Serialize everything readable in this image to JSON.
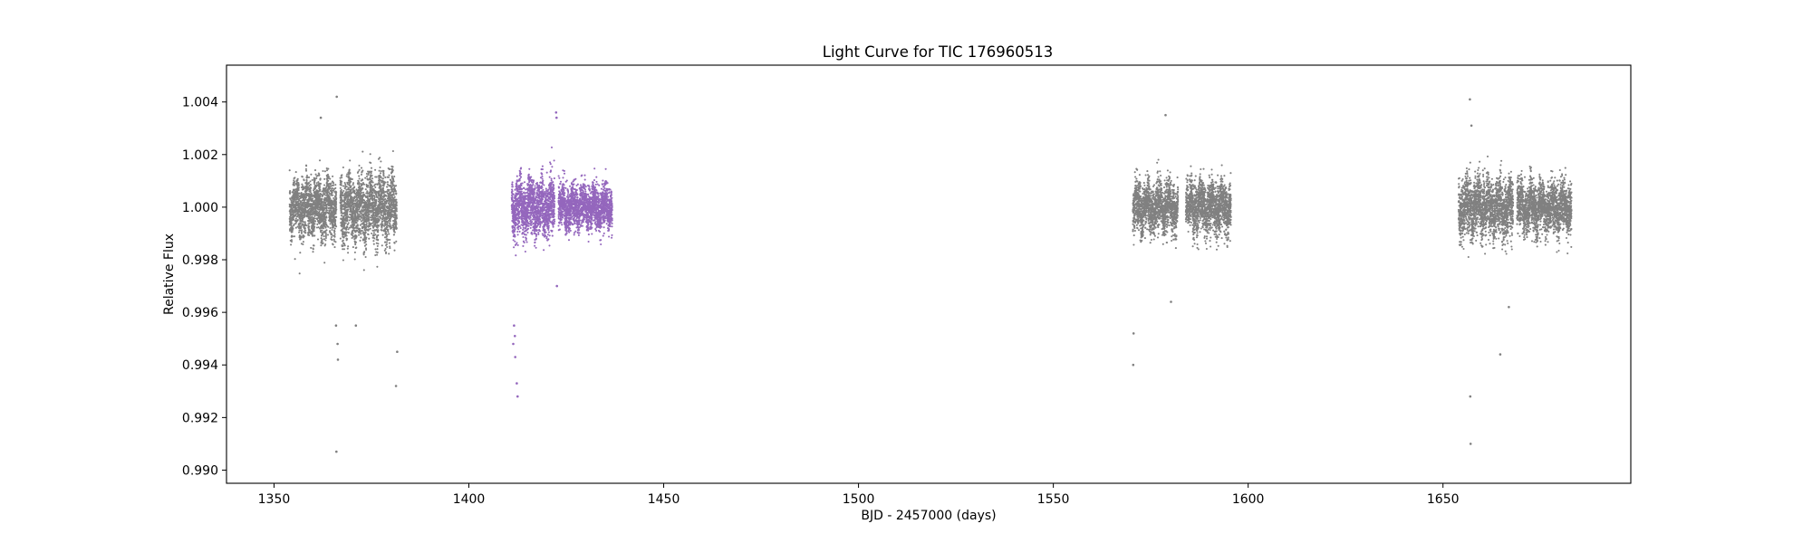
{
  "chart_data": {
    "type": "scatter",
    "title": "Light Curve for TIC 176960513",
    "xlabel": "BJD - 2457000 (days)",
    "ylabel": "Relative Flux",
    "xlim": [
      1337.8,
      1698.2
    ],
    "ylim": [
      0.9895,
      1.0054
    ],
    "xticks": [
      1350,
      1400,
      1450,
      1500,
      1550,
      1600,
      1650
    ],
    "xtick_labels": [
      "1350",
      "1400",
      "1450",
      "1500",
      "1550",
      "1600",
      "1650"
    ],
    "yticks": [
      0.99,
      0.992,
      0.994,
      0.996,
      0.998,
      1.0,
      1.002,
      1.004
    ],
    "ytick_labels": [
      "0.990",
      "0.992",
      "0.994",
      "0.996",
      "0.998",
      "1.000",
      "1.002",
      "1.004"
    ],
    "grid": false,
    "series": [
      {
        "color": "#808080",
        "segments": [
          {
            "x_range": [
              1354.0,
              1366.0
            ],
            "median": 1.0,
            "scatter": 0.0007
          },
          {
            "x_range": [
              1367.0,
              1381.5
            ],
            "median": 1.0,
            "scatter": 0.0008
          },
          {
            "x_range": [
              1570.4,
              1582.0
            ],
            "median": 1.0,
            "scatter": 0.0006
          },
          {
            "x_range": [
              1584.0,
              1595.6
            ],
            "median": 1.0,
            "scatter": 0.0006
          },
          {
            "x_range": [
              1654.0,
              1668.0
            ],
            "median": 1.0,
            "scatter": 0.0007
          },
          {
            "x_range": [
              1669.0,
              1683.0
            ],
            "median": 1.0,
            "scatter": 0.0006
          }
        ],
        "outliers": [
          {
            "x": 1366.1,
            "y": 1.0042
          },
          {
            "x": 1366.0,
            "y": 0.9907
          },
          {
            "x": 1366.3,
            "y": 0.9948
          },
          {
            "x": 1366.4,
            "y": 0.9942
          },
          {
            "x": 1365.9,
            "y": 0.9955
          },
          {
            "x": 1371.0,
            "y": 0.9955
          },
          {
            "x": 1381.3,
            "y": 0.9932
          },
          {
            "x": 1381.6,
            "y": 0.9945
          },
          {
            "x": 1362.0,
            "y": 1.0034
          },
          {
            "x": 1578.8,
            "y": 1.0035
          },
          {
            "x": 1570.5,
            "y": 0.994
          },
          {
            "x": 1570.6,
            "y": 0.9952
          },
          {
            "x": 1580.2,
            "y": 0.9964
          },
          {
            "x": 1656.9,
            "y": 1.0041
          },
          {
            "x": 1657.0,
            "y": 0.9928
          },
          {
            "x": 1657.1,
            "y": 0.991
          },
          {
            "x": 1664.7,
            "y": 0.9944
          },
          {
            "x": 1657.3,
            "y": 1.0031
          },
          {
            "x": 1666.9,
            "y": 0.9962
          }
        ]
      },
      {
        "color": "#9467bd",
        "segments": [
          {
            "x_range": [
              1411.0,
              1422.0
            ],
            "median": 1.0,
            "scatter": 0.0007
          },
          {
            "x_range": [
              1423.0,
              1436.8
            ],
            "median": 1.0,
            "scatter": 0.0005
          }
        ],
        "outliers": [
          {
            "x": 1412.5,
            "y": 0.9928
          },
          {
            "x": 1412.3,
            "y": 0.9933
          },
          {
            "x": 1411.9,
            "y": 0.9943
          },
          {
            "x": 1411.4,
            "y": 0.9948
          },
          {
            "x": 1411.8,
            "y": 0.9951
          },
          {
            "x": 1411.6,
            "y": 0.9955
          },
          {
            "x": 1422.4,
            "y": 1.0036
          },
          {
            "x": 1422.5,
            "y": 1.0034
          },
          {
            "x": 1422.6,
            "y": 0.997
          }
        ]
      }
    ]
  }
}
